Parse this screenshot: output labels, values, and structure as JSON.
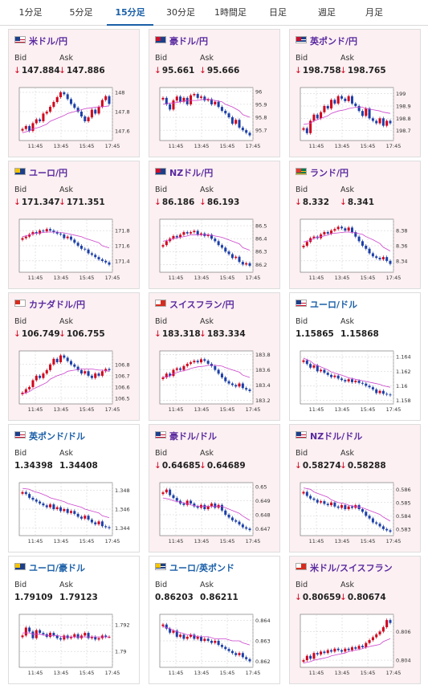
{
  "tabs": [
    {
      "label": "1分足",
      "active": false
    },
    {
      "label": "5分足",
      "active": false
    },
    {
      "label": "15分足",
      "active": true
    },
    {
      "label": "30分足",
      "active": false
    },
    {
      "label": "1時間足",
      "active": false
    },
    {
      "label": "日足",
      "active": false
    },
    {
      "label": "週足",
      "active": false
    },
    {
      "label": "月足",
      "active": false
    }
  ],
  "labels": {
    "bid": "Bid",
    "ask": "Ask"
  },
  "colors": {
    "up": "#d0021b",
    "down": "#1c3fa8",
    "ma": "#cc44cc",
    "accent": "#1a5fa8",
    "pink_bg": "#fcf0f2"
  },
  "x_ticks": [
    "11:45",
    "13:45",
    "15:45",
    "17:45"
  ],
  "cards": [
    {
      "title": "米ドル/円",
      "flag": "us",
      "bid": "147.884",
      "ask": "147.886",
      "arrow": "↓",
      "style": "pink",
      "chart_data": {
        "type": "line",
        "y_ticks": [
          "148",
          "147.8",
          "147.6"
        ],
        "ylim": [
          147.5,
          148.05
        ],
        "closes": [
          147.62,
          147.65,
          147.6,
          147.68,
          147.72,
          147.7,
          147.78,
          147.8,
          147.85,
          147.9,
          147.95,
          148.0,
          147.98,
          147.93,
          147.88,
          147.84,
          147.8,
          147.75,
          147.7,
          147.74,
          147.82,
          147.78,
          147.85,
          147.92,
          147.96,
          147.88
        ],
        "ma": [
          147.58,
          147.6,
          147.62,
          147.64,
          147.67,
          147.7,
          147.73,
          147.76,
          147.78,
          147.8,
          147.82,
          147.83,
          147.84,
          147.85,
          147.85,
          147.86
        ]
      }
    },
    {
      "title": "豪ドル/円",
      "flag": "au",
      "bid": "95.661",
      "ask": "95.666",
      "arrow": "↓",
      "style": "pink",
      "chart_data": {
        "type": "line",
        "y_ticks": [
          "96",
          "95.9",
          "95.8",
          "95.7"
        ],
        "ylim": [
          95.62,
          96.03
        ],
        "closes": [
          95.95,
          95.9,
          95.86,
          95.93,
          95.96,
          95.92,
          95.95,
          95.9,
          95.97,
          95.98,
          95.95,
          95.96,
          95.93,
          95.94,
          95.9,
          95.92,
          95.88,
          95.85,
          95.83,
          95.8,
          95.75,
          95.78,
          95.72,
          95.7,
          95.68,
          95.66
        ],
        "ma": [
          95.9,
          95.91,
          95.91,
          95.92,
          95.93,
          95.93,
          95.93,
          95.94,
          95.94,
          95.93,
          95.92,
          95.9,
          95.88,
          95.85,
          95.82,
          95.8
        ]
      }
    },
    {
      "title": "英ポンド/円",
      "flag": "uk",
      "bid": "198.758",
      "ask": "198.765",
      "arrow": "↓",
      "style": "pink",
      "chart_data": {
        "type": "line",
        "y_ticks": [
          "199",
          "198.9",
          "198.8",
          "198.7"
        ],
        "ylim": [
          198.62,
          199.05
        ],
        "closes": [
          198.72,
          198.68,
          198.78,
          198.83,
          198.8,
          198.85,
          198.9,
          198.88,
          198.95,
          198.92,
          198.98,
          198.96,
          198.94,
          198.98,
          198.92,
          198.9,
          198.86,
          198.82,
          198.88,
          198.8,
          198.78,
          198.76,
          198.8,
          198.74,
          198.78,
          198.76
        ],
        "ma": [
          198.75,
          198.76,
          198.78,
          198.8,
          198.82,
          198.84,
          198.86,
          198.87,
          198.88,
          198.89,
          198.89,
          198.88,
          198.87,
          198.86,
          198.85,
          198.84
        ]
      }
    },
    {
      "title": "ユーロ/円",
      "flag": "eu",
      "bid": "171.347",
      "ask": "171.351",
      "arrow": "↓",
      "style": "pink",
      "chart_data": {
        "type": "line",
        "y_ticks": [
          "171.8",
          "171.6",
          "171.4"
        ],
        "ylim": [
          171.25,
          171.95
        ],
        "closes": [
          171.7,
          171.72,
          171.75,
          171.78,
          171.76,
          171.8,
          171.79,
          171.82,
          171.8,
          171.78,
          171.76,
          171.75,
          171.7,
          171.72,
          171.68,
          171.64,
          171.6,
          171.56,
          171.55,
          171.5,
          171.48,
          171.45,
          171.42,
          171.4,
          171.38,
          171.35
        ],
        "ma": [
          171.72,
          171.74,
          171.76,
          171.77,
          171.78,
          171.78,
          171.78,
          171.77,
          171.76,
          171.74,
          171.72,
          171.7,
          171.67,
          171.64,
          171.6,
          171.57
        ]
      }
    },
    {
      "title": "NZドル/円",
      "flag": "nz",
      "bid": "86.186",
      "ask": "86.193",
      "arrow": "↓",
      "style": "pink",
      "chart_data": {
        "type": "line",
        "y_ticks": [
          "86.5",
          "86.4",
          "86.3",
          "86.2"
        ],
        "ylim": [
          86.14,
          86.55
        ],
        "closes": [
          86.35,
          86.38,
          86.4,
          86.42,
          86.41,
          86.43,
          86.45,
          86.44,
          86.45,
          86.46,
          86.43,
          86.44,
          86.42,
          86.43,
          86.4,
          86.38,
          86.35,
          86.33,
          86.3,
          86.28,
          86.25,
          86.26,
          86.22,
          86.2,
          86.21,
          86.19
        ],
        "ma": [
          86.38,
          86.39,
          86.4,
          86.41,
          86.42,
          86.43,
          86.43,
          86.43,
          86.43,
          86.42,
          86.41,
          86.4,
          86.38,
          86.36,
          86.33,
          86.31
        ]
      }
    },
    {
      "title": "ランド/円",
      "flag": "za",
      "bid": "8.332",
      "ask": "8.341",
      "arrow": "↓",
      "style": "pink",
      "chart_data": {
        "type": "line",
        "y_ticks": [
          "8.38",
          "8.36",
          "8.34"
        ],
        "ylim": [
          8.325,
          8.395
        ],
        "closes": [
          8.36,
          8.365,
          8.37,
          8.372,
          8.37,
          8.375,
          8.378,
          8.376,
          8.38,
          8.382,
          8.385,
          8.383,
          8.38,
          8.384,
          8.378,
          8.372,
          8.366,
          8.36,
          8.356,
          8.35,
          8.346,
          8.344,
          8.342,
          8.345,
          8.34,
          8.336
        ],
        "ma": [
          8.365,
          8.367,
          8.37,
          8.372,
          8.374,
          8.376,
          8.377,
          8.378,
          8.378,
          8.377,
          8.375,
          8.372,
          8.368,
          8.363,
          8.358,
          8.353
        ]
      }
    },
    {
      "title": "カナダドル/円",
      "flag": "ca",
      "bid": "106.749",
      "ask": "106.755",
      "arrow": "↓",
      "style": "pink",
      "chart_data": {
        "type": "line",
        "y_ticks": [
          "106.8",
          "106.7",
          "106.6",
          "106.5"
        ],
        "ylim": [
          106.45,
          106.92
        ],
        "closes": [
          106.55,
          106.58,
          106.6,
          106.66,
          106.7,
          106.68,
          106.72,
          106.75,
          106.8,
          106.85,
          106.82,
          106.88,
          106.86,
          106.83,
          106.8,
          106.78,
          106.75,
          106.72,
          106.74,
          106.7,
          106.68,
          106.72,
          106.7,
          106.74,
          106.76,
          106.75
        ],
        "ma": [
          106.54,
          106.56,
          106.58,
          106.61,
          106.64,
          106.67,
          106.7,
          106.72,
          106.74,
          106.75,
          106.76,
          106.76,
          106.76,
          106.75,
          106.75,
          106.74
        ]
      }
    },
    {
      "title": "スイスフラン/円",
      "flag": "ch",
      "bid": "183.318",
      "ask": "183.334",
      "arrow": "↓",
      "style": "pink",
      "chart_data": {
        "type": "line",
        "y_ticks": [
          "183.8",
          "183.6",
          "183.4",
          "183.2"
        ],
        "ylim": [
          183.15,
          183.85
        ],
        "closes": [
          183.5,
          183.55,
          183.52,
          183.6,
          183.62,
          183.6,
          183.65,
          183.68,
          183.7,
          183.72,
          183.7,
          183.74,
          183.72,
          183.68,
          183.65,
          183.6,
          183.55,
          183.5,
          183.45,
          183.42,
          183.4,
          183.38,
          183.42,
          183.36,
          183.34,
          183.32
        ],
        "ma": [
          183.5,
          183.52,
          183.55,
          183.58,
          183.6,
          183.62,
          183.64,
          183.65,
          183.66,
          183.66,
          183.65,
          183.63,
          183.6,
          183.57,
          183.53,
          183.5
        ]
      }
    },
    {
      "title": "ユーロ/ドル",
      "flag": "eu_us",
      "bid": "1.15865",
      "ask": "1.15868",
      "arrow": "",
      "style": "white",
      "chart_data": {
        "type": "line",
        "y_ticks": [
          "1.164",
          "1.162",
          "1.16",
          "1.158"
        ],
        "ylim": [
          1.1575,
          1.1648
        ],
        "closes": [
          1.1635,
          1.163,
          1.1625,
          1.1628,
          1.162,
          1.1622,
          1.1618,
          1.1615,
          1.1612,
          1.1614,
          1.161,
          1.1608,
          1.1606,
          1.1609,
          1.1605,
          1.1607,
          1.1604,
          1.1603,
          1.16,
          1.1598,
          1.1595,
          1.159,
          1.1593,
          1.1589,
          1.1588,
          1.1587
        ],
        "ma": [
          1.1638,
          1.1634,
          1.163,
          1.1626,
          1.1622,
          1.1619,
          1.1616,
          1.1613,
          1.1611,
          1.1609,
          1.1607,
          1.1606,
          1.1604,
          1.1602,
          1.16,
          1.1598
        ]
      }
    },
    {
      "title": "英ポンド/ドル",
      "flag": "uk_us",
      "bid": "1.34398",
      "ask": "1.34408",
      "arrow": "",
      "style": "white",
      "chart_data": {
        "type": "line",
        "y_ticks": [
          "1.348",
          "1.346",
          "1.344"
        ],
        "ylim": [
          1.3432,
          1.3488
        ],
        "closes": [
          1.3478,
          1.3476,
          1.3472,
          1.347,
          1.3468,
          1.3466,
          1.3464,
          1.3462,
          1.3465,
          1.346,
          1.3462,
          1.3458,
          1.346,
          1.3456,
          1.3458,
          1.3455,
          1.3452,
          1.345,
          1.3453,
          1.3449,
          1.3446,
          1.3444,
          1.3447,
          1.3442,
          1.3441,
          1.344
        ],
        "ma": [
          1.3482,
          1.3481,
          1.3479,
          1.3477,
          1.3474,
          1.3472,
          1.347,
          1.3468,
          1.3466,
          1.3464,
          1.3462,
          1.346,
          1.3458,
          1.3456,
          1.3453,
          1.3451
        ]
      }
    },
    {
      "title": "豪ドル/ドル",
      "flag": "au_us",
      "bid": "0.64685",
      "ask": "0.64689",
      "arrow": "↓",
      "style": "pink",
      "chart_data": {
        "type": "line",
        "y_ticks": [
          "0.65",
          "0.649",
          "0.648",
          "0.647"
        ],
        "ylim": [
          0.6465,
          0.6503
        ],
        "closes": [
          0.6496,
          0.6498,
          0.6494,
          0.6492,
          0.649,
          0.6488,
          0.6487,
          0.649,
          0.6488,
          0.6486,
          0.6485,
          0.6487,
          0.6484,
          0.6486,
          0.6488,
          0.6485,
          0.6487,
          0.6483,
          0.648,
          0.6478,
          0.6476,
          0.6475,
          0.6473,
          0.6471,
          0.647,
          0.6469
        ],
        "ma": [
          0.6492,
          0.6491,
          0.649,
          0.6489,
          0.6488,
          0.6487,
          0.6486,
          0.6486,
          0.6486,
          0.6486,
          0.6486,
          0.6485,
          0.6483,
          0.6481,
          0.6479,
          0.6476
        ]
      }
    },
    {
      "title": "NZドル/ドル",
      "flag": "nz_us",
      "bid": "0.58274",
      "ask": "0.58288",
      "arrow": "↓",
      "style": "pink",
      "chart_data": {
        "type": "line",
        "y_ticks": [
          "0.586",
          "0.585",
          "0.584",
          "0.583"
        ],
        "ylim": [
          0.5825,
          0.5865
        ],
        "closes": [
          0.5858,
          0.5855,
          0.5853,
          0.5852,
          0.585,
          0.5851,
          0.5849,
          0.5848,
          0.585,
          0.5847,
          0.5846,
          0.5848,
          0.5845,
          0.5847,
          0.5846,
          0.5848,
          0.5845,
          0.5843,
          0.584,
          0.5838,
          0.5835,
          0.5834,
          0.5832,
          0.583,
          0.5829,
          0.5828
        ],
        "ma": [
          0.5861,
          0.586,
          0.5858,
          0.5856,
          0.5854,
          0.5852,
          0.585,
          0.5849,
          0.5848,
          0.5847,
          0.5846,
          0.5845,
          0.5843,
          0.5841,
          0.5839,
          0.5836
        ]
      }
    },
    {
      "title": "ユーロ/豪ドル",
      "flag": "eu_au",
      "bid": "1.79109",
      "ask": "1.79123",
      "arrow": "",
      "style": "white",
      "chart_data": {
        "type": "line",
        "y_ticks": [
          "1.792",
          "1.79"
        ],
        "ylim": [
          1.7888,
          1.7928
        ],
        "closes": [
          1.7912,
          1.7918,
          1.7915,
          1.791,
          1.7916,
          1.7914,
          1.7913,
          1.7911,
          1.7914,
          1.7912,
          1.791,
          1.7909,
          1.7912,
          1.791,
          1.7911,
          1.7913,
          1.791,
          1.7912,
          1.7914,
          1.791,
          1.7911,
          1.7909,
          1.791,
          1.7912,
          1.7911,
          1.7911
        ],
        "ma": [
          1.7914,
          1.7914,
          1.7913,
          1.7913,
          1.7912,
          1.7912,
          1.7912,
          1.7911,
          1.7911,
          1.7911,
          1.7911,
          1.7911,
          1.7911,
          1.7911,
          1.7911,
          1.7911
        ]
      }
    },
    {
      "title": "ユーロ/英ポンド",
      "flag": "eu_uk",
      "bid": "0.86203",
      "ask": "0.86211",
      "arrow": "",
      "style": "white",
      "chart_data": {
        "type": "line",
        "y_ticks": [
          "0.864",
          "0.863",
          "0.862"
        ],
        "ylim": [
          0.8617,
          0.8643
        ],
        "closes": [
          0.8638,
          0.8636,
          0.8634,
          0.8635,
          0.8632,
          0.8633,
          0.8631,
          0.8632,
          0.8633,
          0.8631,
          0.8632,
          0.863,
          0.8631,
          0.863,
          0.8629,
          0.863,
          0.8628,
          0.8627,
          0.8626,
          0.8625,
          0.8624,
          0.8623,
          0.8624,
          0.8622,
          0.8621,
          0.862
        ],
        "ma": [
          0.8637,
          0.8636,
          0.8635,
          0.8634,
          0.8633,
          0.8633,
          0.8632,
          0.8632,
          0.8632,
          0.8631,
          0.8631,
          0.8631,
          0.863,
          0.863,
          0.8629,
          0.8628
        ]
      }
    },
    {
      "title": "米ドル/スイスフラン",
      "flag": "us_ch",
      "bid": "0.80659",
      "ask": "0.80674",
      "arrow": "↓",
      "style": "pink",
      "chart_data": {
        "type": "line",
        "y_ticks": [
          "0.806",
          "0.804"
        ],
        "ylim": [
          0.8035,
          0.8072
        ],
        "closes": [
          0.804,
          0.8043,
          0.8041,
          0.8045,
          0.8044,
          0.8046,
          0.8045,
          0.8047,
          0.8046,
          0.8048,
          0.8047,
          0.8046,
          0.8048,
          0.8047,
          0.8049,
          0.8048,
          0.805,
          0.8049,
          0.8052,
          0.8054,
          0.8056,
          0.8058,
          0.806,
          0.8063,
          0.8068,
          0.8066
        ],
        "ma": [
          0.8038,
          0.8039,
          0.804,
          0.8041,
          0.8042,
          0.8043,
          0.8044,
          0.8045,
          0.8046,
          0.8047,
          0.8048,
          0.8049,
          0.805,
          0.8051,
          0.8053,
          0.8055
        ]
      }
    }
  ]
}
